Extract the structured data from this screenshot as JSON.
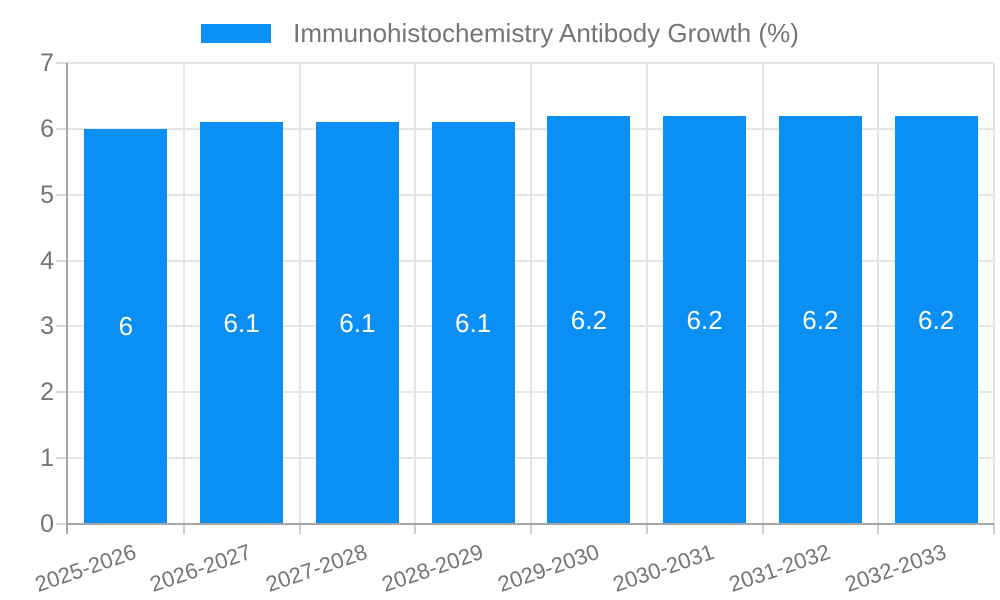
{
  "legend": {
    "label": "Immunohistochemistry Antibody Growth (%)"
  },
  "colors": {
    "bar": "#0A90F5",
    "bar_label_text": "#FFFFFF",
    "axis_label_text": "#757575",
    "legend_text": "#757575",
    "gridline": "#E6E6E6",
    "axis_line": "#A6A6A6",
    "tick_mark": "#D9D9D9",
    "boundary_tick_mark": "#CFCFCF",
    "background": "#FFFFFF"
  },
  "chart_data": {
    "type": "bar",
    "title": "",
    "categories": [
      "2025-2026",
      "2026-2027",
      "2027-2028",
      "2028-2029",
      "2029-2030",
      "2030-2031",
      "2031-2032",
      "2032-2033"
    ],
    "series": [
      {
        "name": "Immunohistochemistry Antibody Growth (%)",
        "values": [
          6,
          6.1,
          6.1,
          6.1,
          6.2,
          6.2,
          6.2,
          6.2
        ]
      }
    ],
    "data_labels": [
      "6",
      "6.1",
      "6.1",
      "6.1",
      "6.2",
      "6.2",
      "6.2",
      "6.2"
    ],
    "xlabel": "",
    "ylabel": "",
    "ylim": [
      0,
      7
    ],
    "yticks": [
      0,
      1,
      2,
      3,
      4,
      5,
      6,
      7
    ],
    "grid": true,
    "legend_position": "top"
  }
}
